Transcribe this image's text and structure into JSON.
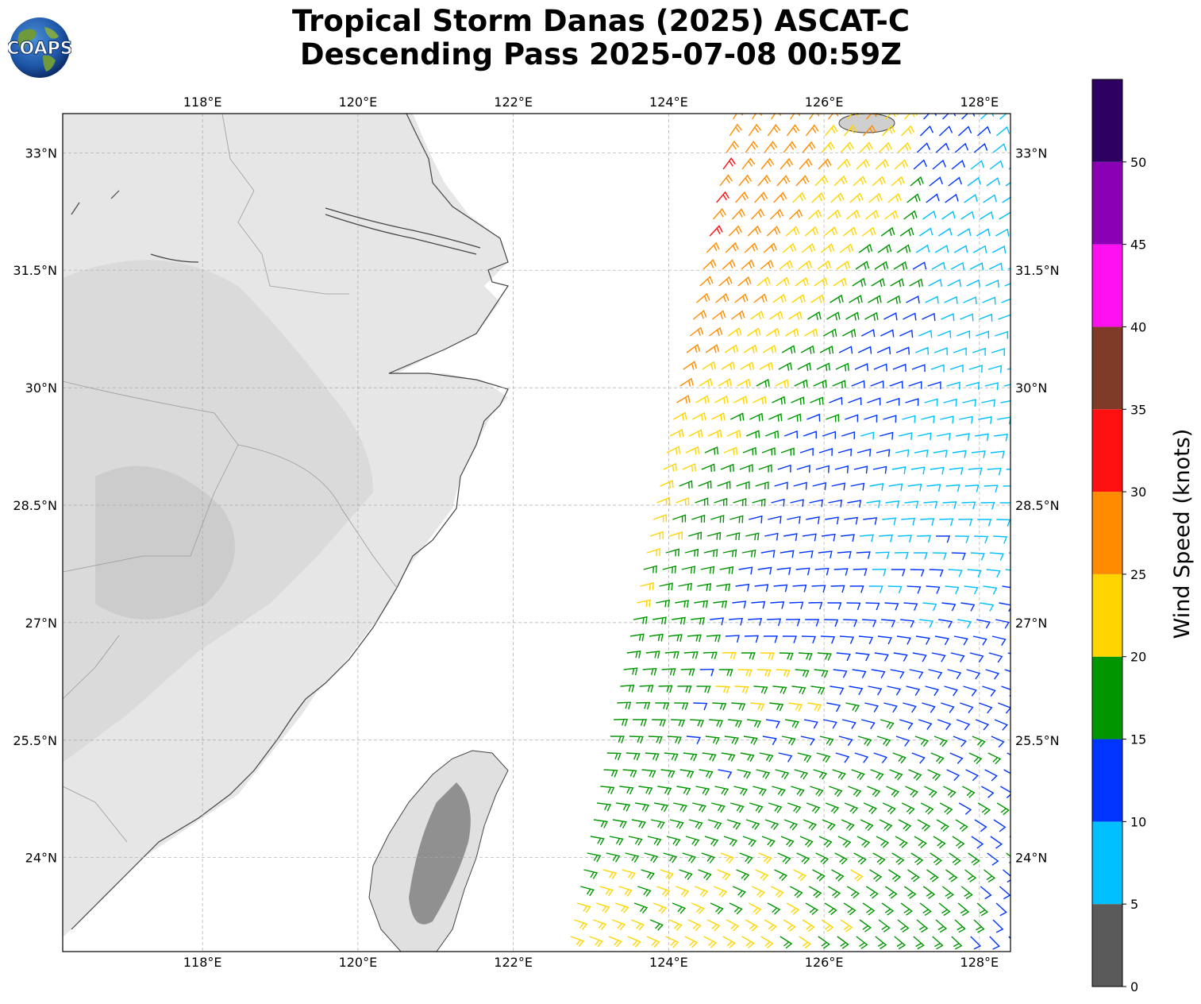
{
  "header": {
    "title_line1": "Tropical Storm Danas (2025) ASCAT-C",
    "title_line2": "Descending Pass 2025-07-08 00:59Z",
    "logo_text": "COAPS"
  },
  "map": {
    "lon_range": [
      116.2,
      128.4
    ],
    "lat_range": [
      22.8,
      33.5
    ],
    "lon_ticks": [
      "118°E",
      "120°E",
      "122°E",
      "124°E",
      "126°E",
      "128°E"
    ],
    "lon_tick_values": [
      118,
      120,
      122,
      124,
      126,
      128
    ],
    "lat_ticks": [
      "33°N",
      "31.5°N",
      "30°N",
      "28.5°N",
      "27°N",
      "25.5°N",
      "24°N"
    ],
    "lat_tick_values": [
      33,
      31.5,
      30,
      28.5,
      27,
      25.5,
      24
    ],
    "gridlines": true,
    "land_shading": "grayscale topography",
    "swath_lon_range": [
      123.0,
      128.4
    ]
  },
  "colorbar": {
    "label": "Wind Speed (knots)",
    "ticks": [
      "0",
      "5",
      "10",
      "15",
      "20",
      "25",
      "30",
      "35",
      "40",
      "45",
      "50"
    ],
    "bins": [
      {
        "min": 0,
        "max": 5,
        "color": "#5a5a5a"
      },
      {
        "min": 5,
        "max": 10,
        "color": "#00bfff"
      },
      {
        "min": 10,
        "max": 15,
        "color": "#0034ff"
      },
      {
        "min": 15,
        "max": 20,
        "color": "#009600"
      },
      {
        "min": 20,
        "max": 25,
        "color": "#ffd500"
      },
      {
        "min": 25,
        "max": 30,
        "color": "#ff8c00"
      },
      {
        "min": 30,
        "max": 35,
        "color": "#ff1010"
      },
      {
        "min": 35,
        "max": 40,
        "color": "#803b28"
      },
      {
        "min": 40,
        "max": 45,
        "color": "#ff10f0"
      },
      {
        "min": 45,
        "max": 50,
        "color": "#8b00b4"
      },
      {
        "min": 50,
        "max": 55,
        "color": "#2e0062"
      }
    ]
  }
}
